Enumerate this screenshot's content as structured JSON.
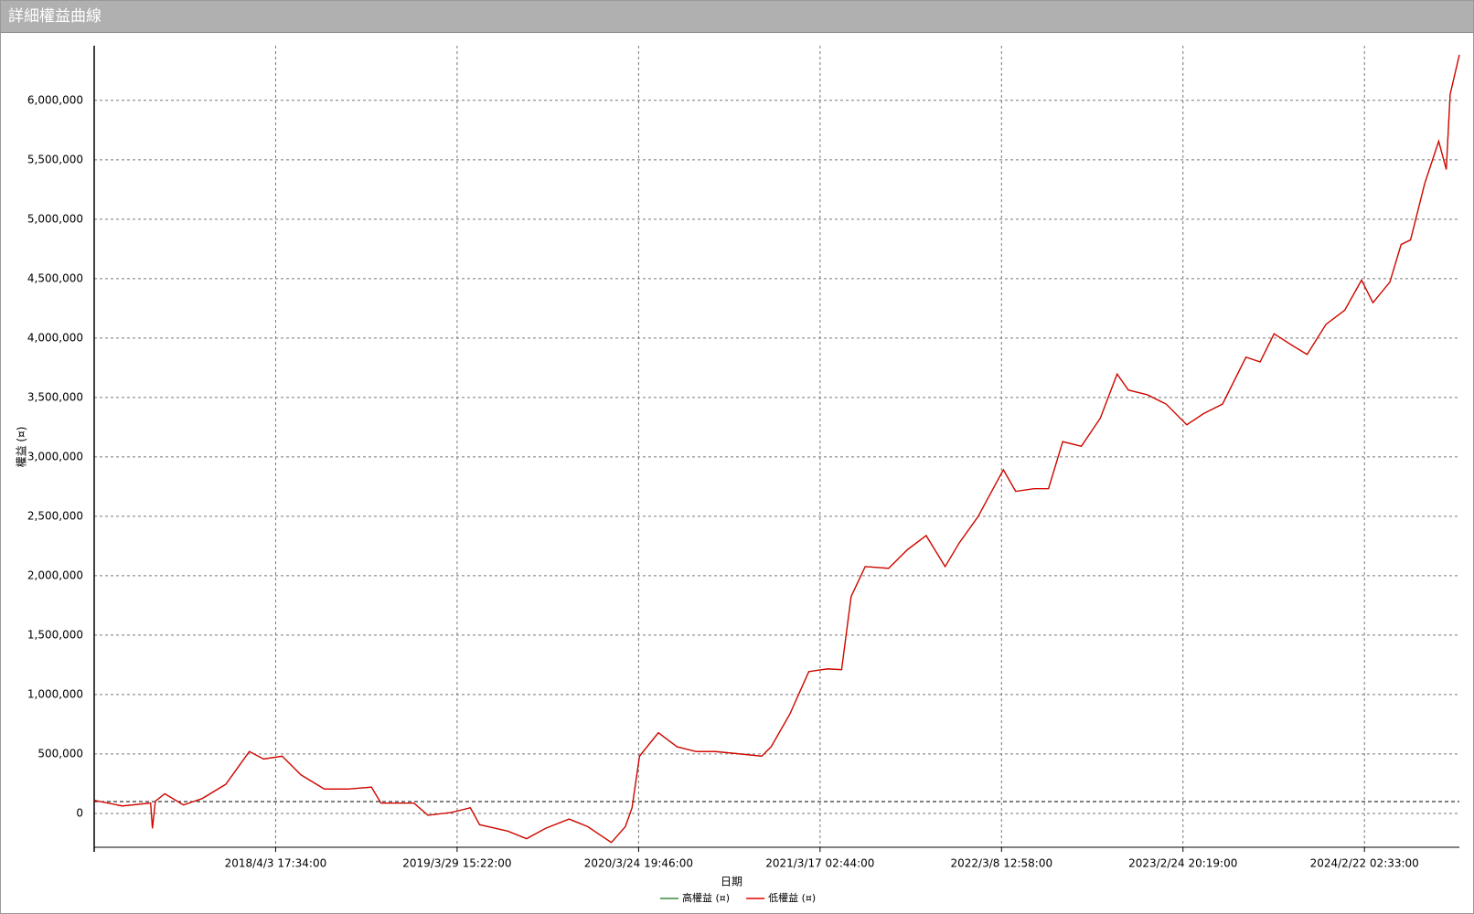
{
  "window_title": "詳細權益曲線",
  "chart_data": {
    "type": "line",
    "xlabel": "日期",
    "ylabel": "權益 (¤)",
    "x": [
      0,
      155,
      311,
      321,
      337,
      389,
      492,
      596,
      725,
      855,
      933,
      1036,
      1140,
      1269,
      1399,
      1528,
      1580,
      1762,
      1839,
      1969,
      2073,
      2124,
      2280,
      2383,
      2487,
      2617,
      2720,
      2850,
      2927,
      2964,
      3005,
      3109,
      3212,
      3316,
      3420,
      3575,
      3679,
      3731,
      3834,
      3938,
      4041,
      4119,
      4171,
      4249,
      4378,
      4482,
      4585,
      4689,
      4767,
      4870,
      5010,
      5078,
      5181,
      5259,
      5337,
      5440,
      5544,
      5637,
      5699,
      5803,
      5907,
      6021,
      6114,
      6218,
      6347,
      6425,
      6502,
      6606,
      6684,
      6788,
      6891,
      6984,
      7047,
      7140,
      7202,
      7254,
      7332,
      7409,
      7451,
      7472,
      7523
    ],
    "series": [
      {
        "name": "高權益 (¤)",
        "color": "#3a8a3a",
        "values": [
          110000,
          63000,
          87000,
          -126000,
          103000,
          166000,
          71000,
          126000,
          245000,
          521000,
          458000,
          482000,
          324000,
          205000,
          205000,
          221000,
          87000,
          87000,
          -16000,
          8000,
          47000,
          -95000,
          -150000,
          -213000,
          -126000,
          -47000,
          -111000,
          -245000,
          -111000,
          47000,
          482000,
          679000,
          561000,
          521000,
          521000,
          498000,
          482000,
          561000,
          837000,
          1193000,
          1216000,
          1209000,
          1825000,
          2077000,
          2062000,
          2220000,
          2338000,
          2077000,
          2275000,
          2496000,
          2891000,
          2710000,
          2733000,
          2733000,
          3128000,
          3089000,
          3325000,
          3697000,
          3562000,
          3523000,
          3444000,
          3270000,
          3365000,
          3444000,
          3839000,
          3799000,
          4036000,
          3934000,
          3862000,
          4115000,
          4234000,
          4487000,
          4297000,
          4471000,
          4787000,
          4826000,
          5300000,
          5656000,
          5419000,
          6051000,
          6383000
        ]
      },
      {
        "name": "低權益 (¤)",
        "color": "#e00000",
        "values": [
          110000,
          63000,
          87000,
          -126000,
          103000,
          166000,
          71000,
          126000,
          245000,
          521000,
          458000,
          482000,
          324000,
          205000,
          205000,
          221000,
          87000,
          87000,
          -16000,
          8000,
          47000,
          -95000,
          -150000,
          -213000,
          -126000,
          -47000,
          -111000,
          -245000,
          -111000,
          47000,
          482000,
          679000,
          561000,
          521000,
          521000,
          498000,
          482000,
          561000,
          837000,
          1193000,
          1216000,
          1209000,
          1825000,
          2077000,
          2062000,
          2220000,
          2338000,
          2077000,
          2275000,
          2496000,
          2891000,
          2710000,
          2733000,
          2733000,
          3128000,
          3089000,
          3325000,
          3697000,
          3562000,
          3523000,
          3444000,
          3270000,
          3365000,
          3444000,
          3839000,
          3799000,
          4036000,
          3934000,
          3862000,
          4115000,
          4234000,
          4487000,
          4297000,
          4471000,
          4787000,
          4826000,
          5300000,
          5656000,
          5419000,
          6051000,
          6383000
        ]
      }
    ],
    "reference_line": 100000,
    "xlim": [
      0,
      7523
    ],
    "xticks": [
      {
        "value": 1000,
        "label": "2018/4/3 17:34:00"
      },
      {
        "value": 2000,
        "label": "2019/3/29 15:22:00"
      },
      {
        "value": 3000,
        "label": "2020/3/24 19:46:00"
      },
      {
        "value": 4000,
        "label": "2021/3/17 02:44:00"
      },
      {
        "value": 5000,
        "label": "2022/3/8 12:58:00"
      },
      {
        "value": 6000,
        "label": "2023/2/24 20:19:00"
      },
      {
        "value": 7000,
        "label": "2024/2/22 02:33:00"
      }
    ],
    "ylim": [
      -285000,
      6460000
    ],
    "yticks": [
      0,
      {
        "value": 500000,
        "label": "500,000"
      },
      {
        "value": 1000000,
        "label": "1,000,000"
      },
      {
        "value": 1500000,
        "label": "1,500,000"
      },
      {
        "value": 2000000,
        "label": "2,000,000"
      },
      {
        "value": 2500000,
        "label": "2,500,000"
      },
      {
        "value": 3000000,
        "label": "3,000,000"
      },
      {
        "value": 3500000,
        "label": "3,500,000"
      },
      {
        "value": 4000000,
        "label": "4,000,000"
      },
      {
        "value": 4500000,
        "label": "4,500,000"
      },
      {
        "value": 5000000,
        "label": "5,000,000"
      },
      {
        "value": 5500000,
        "label": "5,500,000"
      },
      {
        "value": 6000000,
        "label": "6,000,000"
      }
    ],
    "grid": true
  }
}
